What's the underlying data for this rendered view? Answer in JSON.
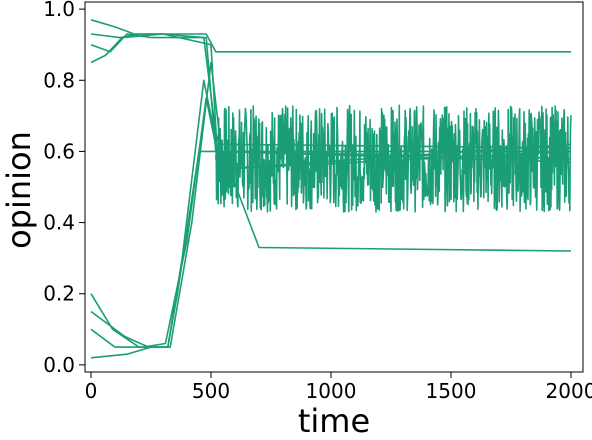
{
  "chart_data": {
    "type": "line",
    "title": "",
    "xlabel": "time",
    "ylabel": "opinion",
    "xlim": [
      -25,
      2050
    ],
    "ylim": [
      -0.02,
      1.02
    ],
    "xticks": [
      0,
      500,
      1000,
      1500,
      2000
    ],
    "yticks": [
      0.0,
      0.2,
      0.4,
      0.6,
      0.8,
      1.0
    ],
    "xtick_labels": [
      "0",
      "500",
      "1000",
      "1500",
      "2000"
    ],
    "ytick_labels": [
      "0.0",
      "0.2",
      "0.4",
      "0.6",
      "0.8",
      "1.0"
    ],
    "grid": false,
    "legend": "none",
    "color": "#1b9e77",
    "series": [
      {
        "x": [
          0,
          100,
          180,
          300,
          480,
          520,
          2000
        ],
        "y": [
          0.97,
          0.95,
          0.93,
          0.93,
          0.93,
          0.88,
          0.88
        ]
      },
      {
        "x": [
          0,
          120,
          200,
          300,
          470,
          520,
          700,
          2000
        ],
        "y": [
          0.93,
          0.92,
          0.93,
          0.93,
          0.92,
          0.65,
          0.33,
          0.32
        ]
      },
      {
        "x": [
          0,
          80,
          150,
          250,
          480,
          520,
          2000
        ],
        "y": [
          0.9,
          0.88,
          0.93,
          0.92,
          0.92,
          0.6,
          0.6
        ]
      },
      {
        "x": [
          0,
          60,
          130,
          300,
          500,
          530,
          2000
        ],
        "y": [
          0.85,
          0.87,
          0.92,
          0.93,
          0.9,
          0.55,
          0.62
        ]
      },
      {
        "x": [
          0,
          150,
          250,
          320,
          380,
          470,
          530,
          2000
        ],
        "y": [
          0.02,
          0.03,
          0.05,
          0.05,
          0.3,
          0.8,
          0.6,
          0.58
        ]
      },
      {
        "x": [
          0,
          100,
          220,
          310,
          400,
          480,
          540,
          2000
        ],
        "y": [
          0.1,
          0.05,
          0.05,
          0.06,
          0.35,
          0.75,
          0.55,
          0.6
        ]
      },
      {
        "x": [
          0,
          140,
          240,
          330,
          420,
          500,
          540,
          2000
        ],
        "y": [
          0.15,
          0.08,
          0.05,
          0.05,
          0.4,
          0.85,
          0.62,
          0.61
        ]
      },
      {
        "x": [
          0,
          90,
          200,
          320,
          360,
          450,
          520,
          2000
        ],
        "y": [
          0.2,
          0.1,
          0.05,
          0.05,
          0.2,
          0.6,
          0.6,
          0.57
        ]
      }
    ],
    "noise_band": {
      "x_start": 520,
      "x_end": 2000,
      "center": 0.58,
      "amplitude": 0.15
    }
  }
}
